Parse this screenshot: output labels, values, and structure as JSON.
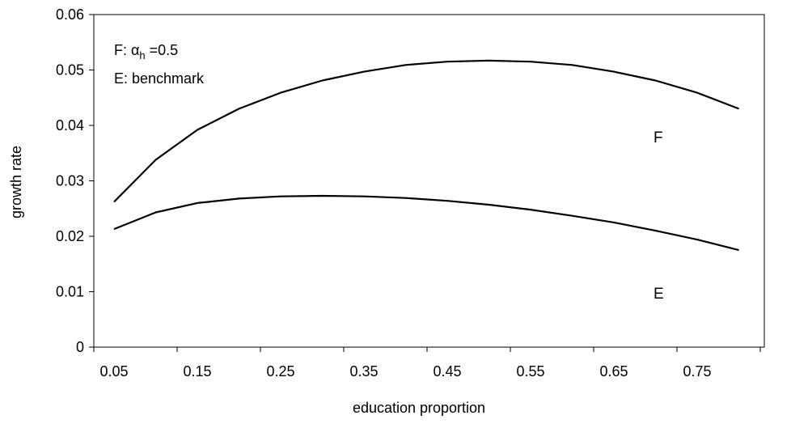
{
  "chart_data": {
    "type": "line",
    "title": "",
    "xlabel": "education proportion",
    "ylabel": "growth rate",
    "xlim": [
      0.05,
      0.8
    ],
    "ylim": [
      0,
      0.06
    ],
    "grid": false,
    "x_ticks": [
      "0.05",
      "0.15",
      "0.25",
      "0.35",
      "0.45",
      "0.55",
      "0.65",
      "0.75"
    ],
    "y_ticks": [
      "0",
      "0.01",
      "0.02",
      "0.03",
      "0.04",
      "0.05",
      "0.06"
    ],
    "x": [
      0.05,
      0.1,
      0.15,
      0.2,
      0.25,
      0.3,
      0.35,
      0.4,
      0.45,
      0.5,
      0.55,
      0.6,
      0.65,
      0.7,
      0.75,
      0.8
    ],
    "series": [
      {
        "name": "F",
        "values": [
          0.0262,
          0.0338,
          0.0392,
          0.043,
          0.0459,
          0.0481,
          0.0497,
          0.0509,
          0.0515,
          0.0517,
          0.0515,
          0.0509,
          0.0497,
          0.0481,
          0.0459,
          0.043
        ]
      },
      {
        "name": "E",
        "values": [
          0.0213,
          0.0243,
          0.026,
          0.0268,
          0.0272,
          0.0273,
          0.0272,
          0.0269,
          0.0264,
          0.0257,
          0.0248,
          0.0237,
          0.0225,
          0.021,
          0.0194,
          0.0175
        ]
      }
    ],
    "legend": {
      "placement": "top-left",
      "line1": {
        "prefix": "F: ",
        "symbol": "α",
        "subscript": "h",
        "suffix": " =0.5"
      },
      "line2": "E: benchmark"
    },
    "series_labels": {
      "F": "F",
      "E": "E"
    }
  }
}
